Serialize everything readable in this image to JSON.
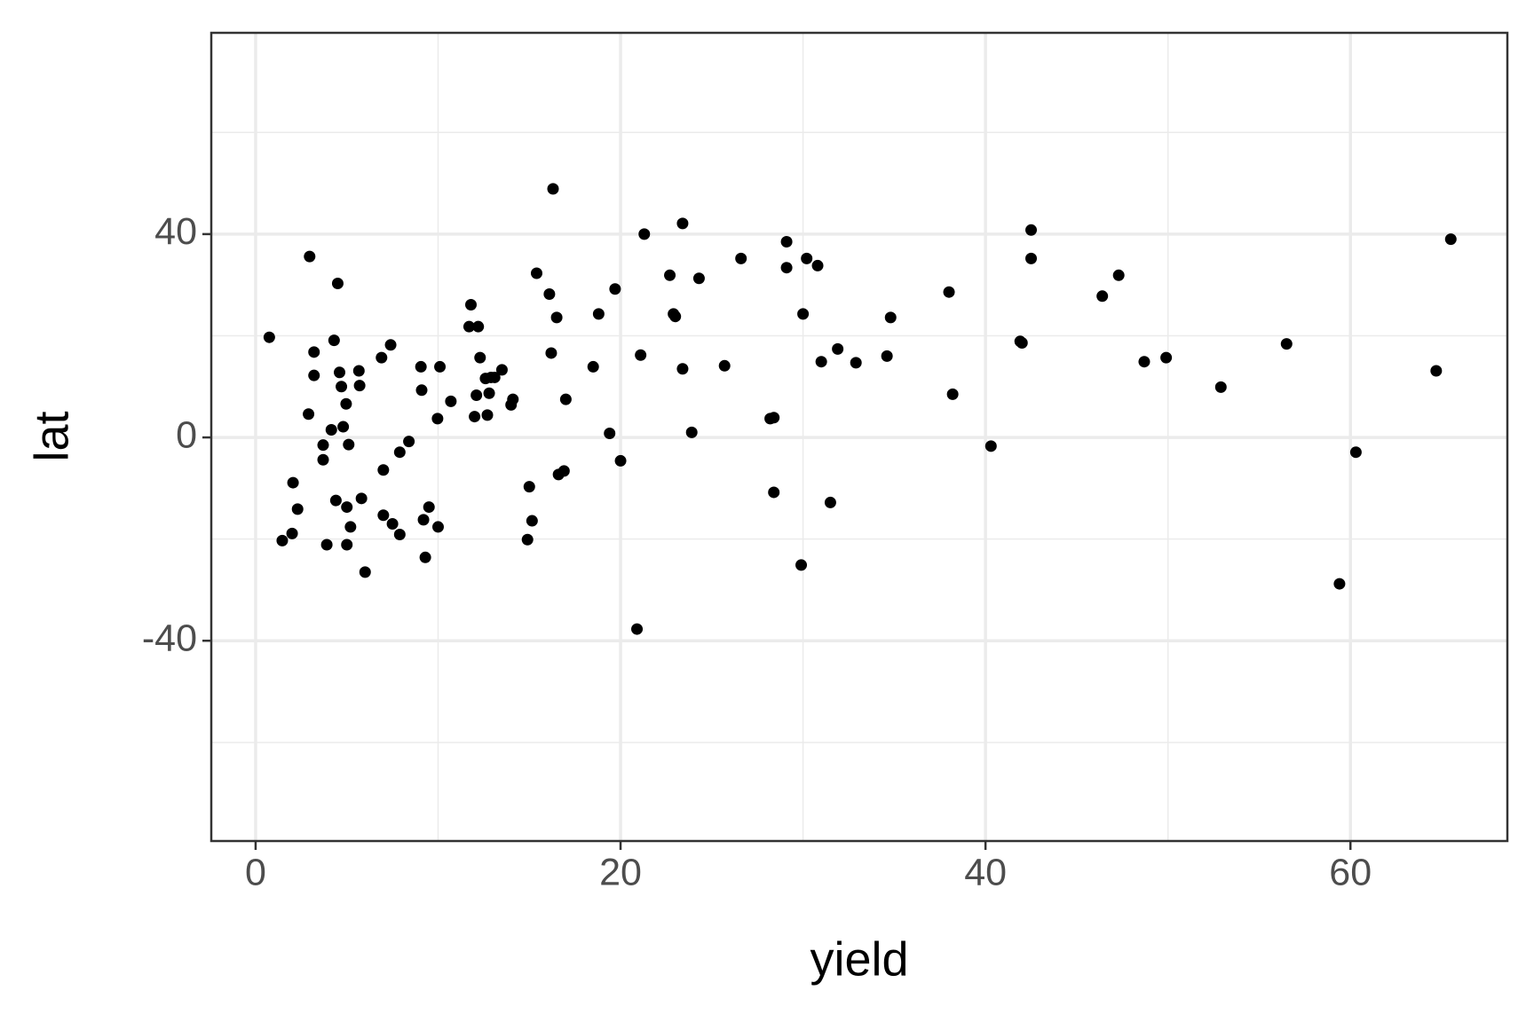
{
  "chart_data": {
    "type": "scatter",
    "x_label": "yield",
    "y_label": "lat",
    "x": [
      0.75,
      1.46,
      2.0,
      2.05,
      2.3,
      2.9,
      2.96,
      3.2,
      3.2,
      3.7,
      3.7,
      3.9,
      4.15,
      4.3,
      4.4,
      4.5,
      4.6,
      4.7,
      4.8,
      4.96,
      5.0,
      5.0,
      5.1,
      5.2,
      5.66,
      5.7,
      5.8,
      6.0,
      6.9,
      7.0,
      7.0,
      7.4,
      7.5,
      7.9,
      7.9,
      8.4,
      9.06,
      9.1,
      9.2,
      9.3,
      9.5,
      9.97,
      10.0,
      10.1,
      10.7,
      11.7,
      11.8,
      12.0,
      12.1,
      12.2,
      12.3,
      12.6,
      12.7,
      12.8,
      12.9,
      13.1,
      13.5,
      14.0,
      14.1,
      14.9,
      15.0,
      15.15,
      15.4,
      16.1,
      16.2,
      16.3,
      16.5,
      16.6,
      16.9,
      17.0,
      18.5,
      18.8,
      19.4,
      19.7,
      20.0,
      20.9,
      21.1,
      21.3,
      22.7,
      22.9,
      23.0,
      23.4,
      23.4,
      23.9,
      24.3,
      25.7,
      26.6,
      28.2,
      28.4,
      28.4,
      29.1,
      29.1,
      29.9,
      30.0,
      30.2,
      30.8,
      31.0,
      31.5,
      31.9,
      32.9,
      34.6,
      34.8,
      38.0,
      38.2,
      40.3,
      41.9,
      42.0,
      42.5,
      42.5,
      46.4,
      47.3,
      48.7,
      49.9,
      52.9,
      56.5,
      59.4,
      60.3,
      64.7,
      65.5
    ],
    "y": [
      19.7,
      -20.3,
      -18.9,
      -8.9,
      -14.1,
      4.6,
      35.6,
      16.8,
      12.2,
      -1.5,
      -4.4,
      -21.1,
      1.5,
      19.1,
      -12.4,
      30.3,
      12.8,
      10.0,
      2.1,
      6.6,
      -13.7,
      -21.1,
      -1.4,
      -17.6,
      13.1,
      10.2,
      -12.0,
      -26.5,
      15.7,
      -6.4,
      -15.3,
      18.2,
      -17.0,
      -19.1,
      -2.9,
      -0.8,
      13.9,
      9.3,
      -16.2,
      -23.6,
      -13.7,
      3.7,
      -17.6,
      13.9,
      7.1,
      21.8,
      26.1,
      4.1,
      8.3,
      21.8,
      15.7,
      11.6,
      4.4,
      8.7,
      11.8,
      11.8,
      13.3,
      6.4,
      7.5,
      -20.1,
      -9.7,
      -16.4,
      32.3,
      28.2,
      16.6,
      48.9,
      23.6,
      -7.3,
      -6.6,
      7.5,
      13.9,
      24.3,
      0.8,
      29.2,
      -4.6,
      -37.7,
      16.2,
      40.0,
      31.9,
      24.3,
      23.8,
      42.1,
      13.5,
      1.0,
      31.3,
      14.1,
      35.2,
      3.7,
      3.9,
      -10.8,
      38.5,
      33.4,
      -25.1,
      24.3,
      35.2,
      33.8,
      14.9,
      -12.8,
      17.4,
      14.7,
      16.0,
      23.6,
      28.6,
      8.5,
      -1.7,
      18.9,
      18.6,
      40.8,
      35.2,
      27.8,
      31.9,
      14.9,
      15.7,
      9.9,
      18.4,
      -28.8,
      -2.9,
      13.1,
      39.0
    ],
    "color": "#000000",
    "xlim": [
      -2.43,
      68.6
    ],
    "ylim": [
      -79.4,
      79.6
    ],
    "xticks": [
      0,
      20,
      40,
      60
    ],
    "yticks": [
      -40,
      0,
      40
    ],
    "x_minor_ticks": [
      10,
      30,
      50
    ],
    "y_minor_ticks": [
      -60,
      -20,
      20,
      60
    ],
    "grid": true
  }
}
